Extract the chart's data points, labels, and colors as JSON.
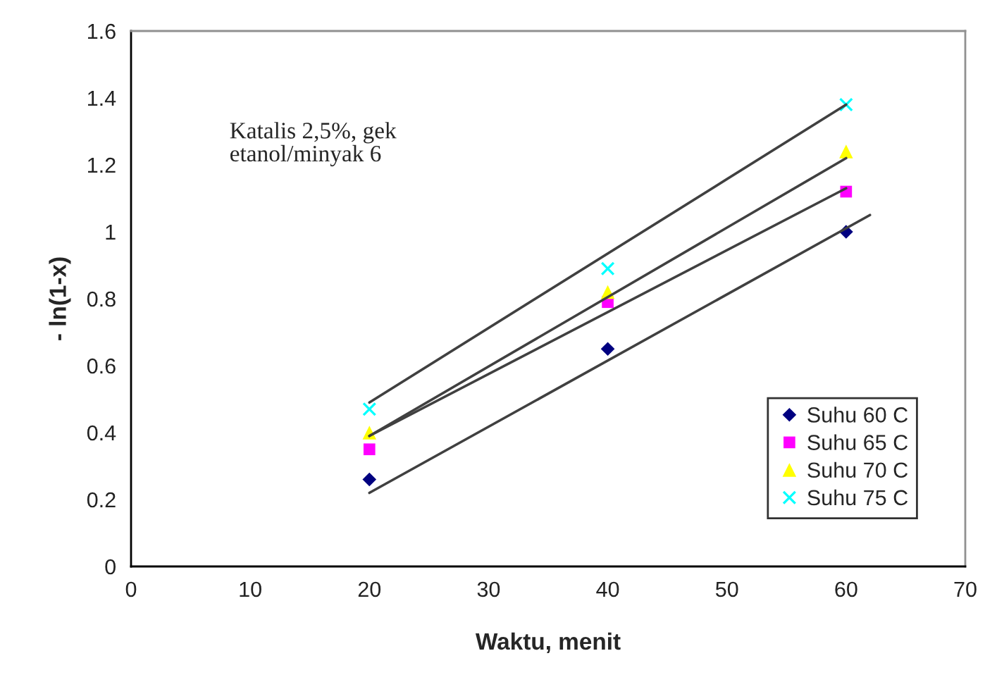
{
  "chart_data": {
    "type": "scatter",
    "xlabel": "Waktu, menit",
    "ylabel": "- ln(1-x)",
    "xlim": [
      0,
      70
    ],
    "xticks": [
      0,
      10,
      20,
      30,
      40,
      50,
      60,
      70
    ],
    "ylim": [
      0,
      1.6
    ],
    "yticks": [
      0,
      0.2,
      0.4,
      0.6,
      0.8,
      1,
      1.2,
      1.4,
      1.6
    ],
    "x": [
      20,
      40,
      60
    ],
    "series": [
      {
        "name": "Suhu 60 C",
        "color": "#000080",
        "marker": "diamond",
        "values": [
          0.26,
          0.65,
          1.0
        ]
      },
      {
        "name": "Suhu 65 C",
        "color": "#ff00ff",
        "marker": "square",
        "values": [
          0.35,
          0.79,
          1.12
        ]
      },
      {
        "name": "Suhu 70 C",
        "color": "#ffff00",
        "marker": "triangle",
        "values": [
          0.4,
          0.82,
          1.24
        ]
      },
      {
        "name": "Suhu 75 C",
        "color": "#00ffff",
        "marker": "cross",
        "values": [
          0.47,
          0.89,
          1.38
        ]
      },
      {
        "type": "line",
        "color": "#404040",
        "x": [
          20,
          62
        ],
        "values": [
          0.22,
          1.05
        ]
      },
      {
        "type": "line",
        "color": "#404040",
        "x": [
          20,
          60
        ],
        "values": [
          0.39,
          1.13
        ]
      },
      {
        "type": "line",
        "color": "#404040",
        "x": [
          20,
          60
        ],
        "values": [
          0.39,
          1.22
        ]
      },
      {
        "type": "line",
        "color": "#404040",
        "x": [
          20,
          60
        ],
        "values": [
          0.49,
          1.38
        ]
      }
    ],
    "annotations": [
      "Katalis 2,5%, gek\netanol/minyak 6"
    ],
    "legend": "bottom right",
    "grid": false
  }
}
